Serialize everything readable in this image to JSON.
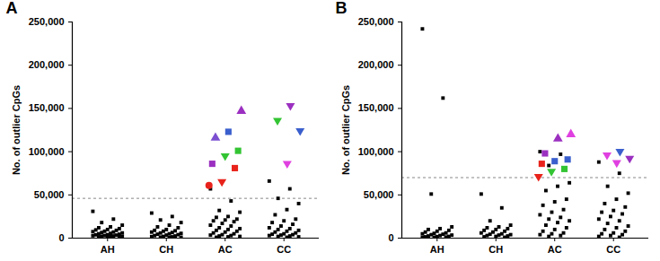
{
  "chart_data": [
    {
      "type": "scatter",
      "title": "A",
      "ylabel": "No. of outlier CpGs",
      "categories": [
        "AH",
        "CH",
        "AC",
        "CC"
      ],
      "ylim": [
        0,
        250000
      ],
      "yticks": [
        0,
        {
          "value": 50000,
          "label": "50,000"
        },
        {
          "value": 100000,
          "label": "100,000"
        },
        {
          "value": 150000,
          "label": "150,000"
        },
        {
          "value": 200000,
          "label": "200,000"
        },
        {
          "value": 250000,
          "label": "250,000"
        }
      ],
      "threshold": 46000,
      "groups": [
        {
          "category": "AH",
          "color": "#000000",
          "marker": "square",
          "values": [
            31000,
            22000,
            18000,
            15000,
            13000,
            12000,
            11000,
            10000,
            9500,
            9000,
            8000,
            7500,
            7000,
            6500,
            6000,
            5500,
            5000,
            4500,
            4000,
            3800,
            3500,
            3000,
            2800,
            2500,
            2200,
            2000,
            1800,
            1500,
            1200,
            1000
          ]
        },
        {
          "category": "CH",
          "color": "#000000",
          "marker": "square",
          "values": [
            29000,
            25000,
            21000,
            18000,
            15000,
            13000,
            12000,
            10000,
            9000,
            8500,
            8000,
            7000,
            6500,
            6000,
            5500,
            5000,
            4500,
            4000,
            3500,
            3000,
            2500,
            2000,
            1800,
            1500,
            1200,
            1000,
            800
          ]
        },
        {
          "category": "AC",
          "color": "#000000",
          "marker": "square",
          "values": [
            57000,
            43000,
            32000,
            30000,
            25000,
            24000,
            22000,
            21000,
            20000,
            19000,
            17000,
            15000,
            14000,
            12000,
            11000,
            10000,
            9000,
            8000,
            7000,
            6000,
            5000,
            4000,
            3500,
            3000,
            2500,
            2000,
            1500,
            1000
          ]
        },
        {
          "category": "CC",
          "color": "#000000",
          "marker": "square",
          "values": [
            66000,
            57000,
            46000,
            40000,
            33000,
            27000,
            22000,
            20000,
            18000,
            16000,
            14000,
            12000,
            11000,
            10000,
            9000,
            8000,
            7000,
            6000,
            5000,
            4500,
            4000,
            3500,
            3000,
            2500,
            2000,
            1500,
            1000
          ]
        }
      ],
      "highlighted": [
        {
          "category": "AC",
          "value": 147000,
          "color": "#9b30c0",
          "marker": "triangle"
        },
        {
          "category": "AC",
          "value": 123000,
          "color": "#3a5fcd",
          "marker": "square"
        },
        {
          "category": "AC",
          "value": 116000,
          "color": "#7b4fd0",
          "marker": "triangle"
        },
        {
          "category": "AC",
          "value": 101000,
          "color": "#33c433",
          "marker": "square"
        },
        {
          "category": "AC",
          "value": 95000,
          "color": "#33c433",
          "marker": "triangle-down"
        },
        {
          "category": "AC",
          "value": 86000,
          "color": "#9b30c0",
          "marker": "square"
        },
        {
          "category": "AC",
          "value": 81000,
          "color": "#e8231b",
          "marker": "square"
        },
        {
          "category": "AC",
          "value": 65000,
          "color": "#e8231b",
          "marker": "triangle-down"
        },
        {
          "category": "AC",
          "value": 61000,
          "color": "#e8231b",
          "marker": "circle"
        },
        {
          "category": "CC",
          "value": 153000,
          "color": "#9b30c0",
          "marker": "triangle-down"
        },
        {
          "category": "CC",
          "value": 136000,
          "color": "#33c433",
          "marker": "triangle-down"
        },
        {
          "category": "CC",
          "value": 124000,
          "color": "#3a5fcd",
          "marker": "triangle-down"
        },
        {
          "category": "CC",
          "value": 86000,
          "color": "#e040e0",
          "marker": "triangle-down"
        }
      ]
    },
    {
      "type": "scatter",
      "title": "B",
      "ylabel": "No. of outlier CpGs",
      "categories": [
        "AH",
        "CH",
        "AC",
        "CC"
      ],
      "ylim": [
        0,
        250000
      ],
      "yticks": [
        0,
        {
          "value": 50000,
          "label": "50,000"
        },
        {
          "value": 100000,
          "label": "100,000"
        },
        {
          "value": 150000,
          "label": "150,000"
        },
        {
          "value": 200000,
          "label": "200,000"
        },
        {
          "value": 250000,
          "label": "250,000"
        }
      ],
      "threshold": 70000,
      "groups": [
        {
          "category": "AH",
          "color": "#000000",
          "marker": "square",
          "values": [
            242000,
            162000,
            51000,
            13000,
            11000,
            10000,
            9000,
            8000,
            7000,
            6000,
            5500,
            5000,
            4500,
            4000,
            3500,
            3000,
            2500,
            2000,
            1800,
            1500,
            1200,
            1000,
            800
          ]
        },
        {
          "category": "CH",
          "color": "#000000",
          "marker": "square",
          "values": [
            51000,
            35000,
            20000,
            15000,
            13000,
            12000,
            11000,
            10000,
            9000,
            8000,
            7000,
            6000,
            5000,
            4500,
            4000,
            3500,
            3000,
            2500,
            2000,
            1500,
            1000
          ]
        },
        {
          "category": "AC",
          "color": "#000000",
          "marker": "square",
          "values": [
            100000,
            97000,
            84000,
            64000,
            60000,
            55000,
            45000,
            42000,
            38000,
            33000,
            30000,
            27000,
            24000,
            22000,
            20000,
            18000,
            15000,
            12000,
            10000,
            8000,
            6000,
            5000,
            4000,
            3000,
            2000
          ]
        },
        {
          "category": "CC",
          "color": "#000000",
          "marker": "square",
          "values": [
            88000,
            75000,
            60000,
            52000,
            45000,
            40000,
            36000,
            32000,
            30000,
            28000,
            25000,
            22000,
            20000,
            17000,
            14000,
            12000,
            10000,
            8000,
            6000,
            5000,
            4000,
            3000,
            2000,
            1000
          ]
        }
      ],
      "highlighted": [
        {
          "category": "AC",
          "value": 120000,
          "color": "#e040e0",
          "marker": "triangle"
        },
        {
          "category": "AC",
          "value": 115000,
          "color": "#9b30c0",
          "marker": "triangle"
        },
        {
          "category": "AC",
          "value": 98000,
          "color": "#9b30c0",
          "marker": "square"
        },
        {
          "category": "AC",
          "value": 91000,
          "color": "#3a5fcd",
          "marker": "square"
        },
        {
          "category": "AC",
          "value": 89000,
          "color": "#3a5fcd",
          "marker": "square"
        },
        {
          "category": "AC",
          "value": 86000,
          "color": "#e8231b",
          "marker": "square"
        },
        {
          "category": "AC",
          "value": 80000,
          "color": "#33c433",
          "marker": "square"
        },
        {
          "category": "AC",
          "value": 77000,
          "color": "#33c433",
          "marker": "triangle-down"
        },
        {
          "category": "AC",
          "value": 71000,
          "color": "#e8231b",
          "marker": "triangle-down"
        },
        {
          "category": "CC",
          "value": 100000,
          "color": "#3a5fcd",
          "marker": "triangle-down"
        },
        {
          "category": "CC",
          "value": 96000,
          "color": "#e040e0",
          "marker": "triangle-down"
        },
        {
          "category": "CC",
          "value": 92000,
          "color": "#9b30c0",
          "marker": "triangle-down"
        },
        {
          "category": "CC",
          "value": 87000,
          "color": "#e040e0",
          "marker": "triangle-down"
        }
      ]
    }
  ]
}
